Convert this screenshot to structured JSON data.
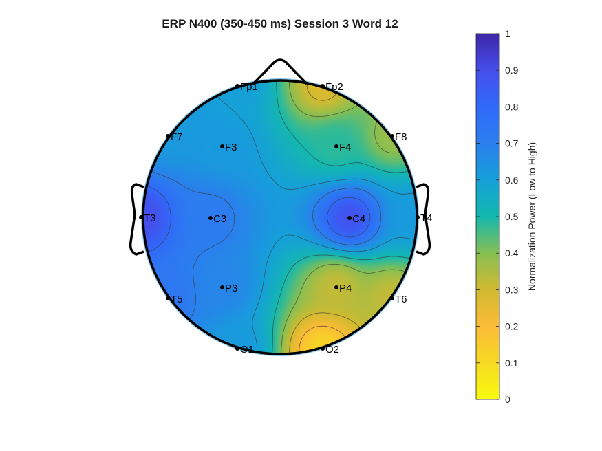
{
  "chart_data": {
    "type": "heatmap",
    "title": "ERP N400 (350-450 ms) Session 3 Word 12",
    "colorbar": {
      "label": "Normalization Power (Low to High)",
      "range": [
        0,
        1
      ],
      "ticks": [
        "0",
        "0.1",
        "0.2",
        "0.3",
        "0.4",
        "0.5",
        "0.6",
        "0.7",
        "0.8",
        "0.9",
        "1"
      ],
      "colormap": "parula",
      "position": "right"
    },
    "electrodes": [
      {
        "name": "Fp1",
        "value": 0.6
      },
      {
        "name": "Fp2",
        "value": 0.28
      },
      {
        "name": "F7",
        "value": 0.62
      },
      {
        "name": "F3",
        "value": 0.62
      },
      {
        "name": "F4",
        "value": 0.48
      },
      {
        "name": "F8",
        "value": 0.38
      },
      {
        "name": "T3",
        "value": 0.9
      },
      {
        "name": "C3",
        "value": 0.72
      },
      {
        "name": "C4",
        "value": 0.88
      },
      {
        "name": "T4",
        "value": 0.62
      },
      {
        "name": "T5",
        "value": 0.74
      },
      {
        "name": "P3",
        "value": 0.68
      },
      {
        "name": "P4",
        "value": 0.32
      },
      {
        "name": "T6",
        "value": 0.32
      },
      {
        "name": "O1",
        "value": 0.62
      },
      {
        "name": "O2",
        "value": 0.12
      }
    ]
  }
}
